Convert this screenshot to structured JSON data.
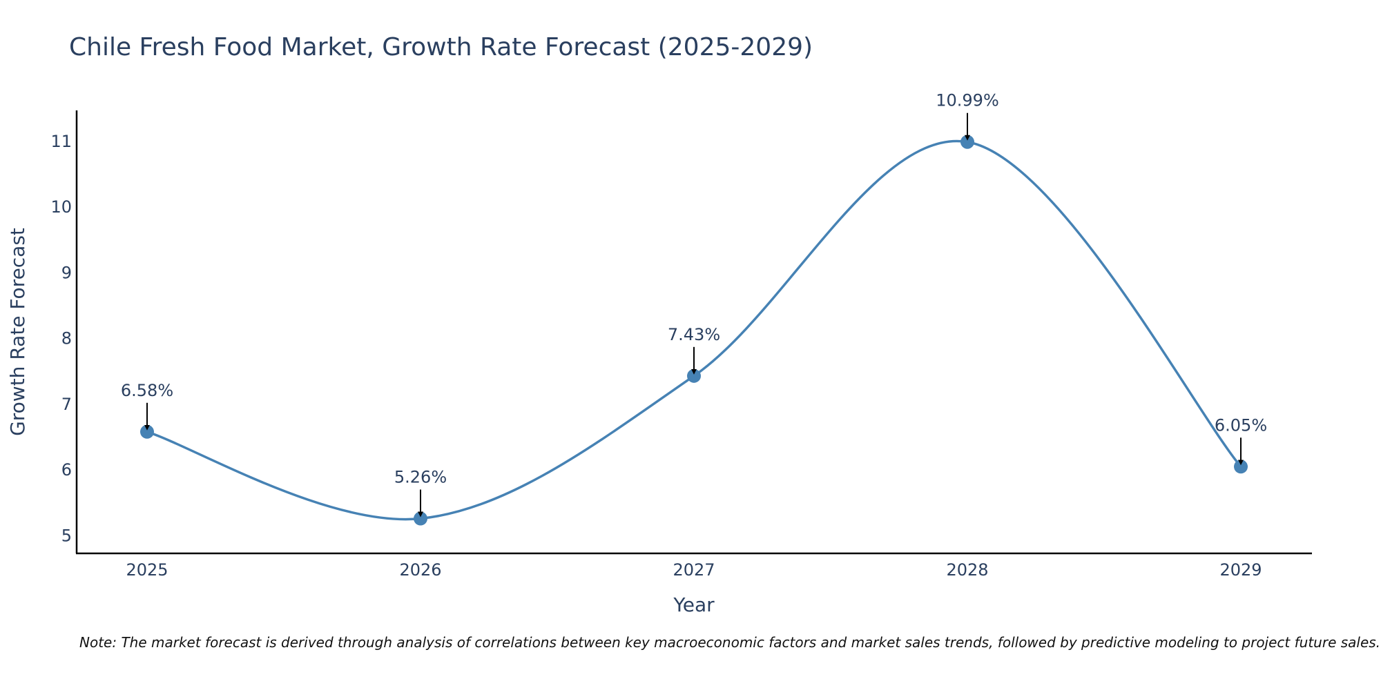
{
  "chart_data": {
    "type": "line",
    "title": "Chile Fresh Food Market, Growth Rate Forecast (2025-2029)",
    "xlabel": "Year",
    "ylabel": "Growth Rate Forecast",
    "categories": [
      "2025",
      "2026",
      "2027",
      "2028",
      "2029"
    ],
    "series": [
      {
        "name": "Growth Rate Forecast",
        "values": [
          6.58,
          5.26,
          7.43,
          10.99,
          6.05
        ]
      }
    ],
    "data_labels": [
      "6.58%",
      "5.26%",
      "7.43%",
      "10.99%",
      "6.05%"
    ],
    "yticks": [
      5,
      6,
      7,
      8,
      9,
      10,
      11
    ],
    "ylim": [
      4.73,
      11.47
    ],
    "line_shape": "spline",
    "grid": false,
    "line_color": "#4682b4",
    "marker_color": "#4682b4",
    "note": "Note: The market forecast is derived through analysis of correlations between key macroeconomic factors and market sales trends, followed by predictive modeling to project future sales."
  }
}
